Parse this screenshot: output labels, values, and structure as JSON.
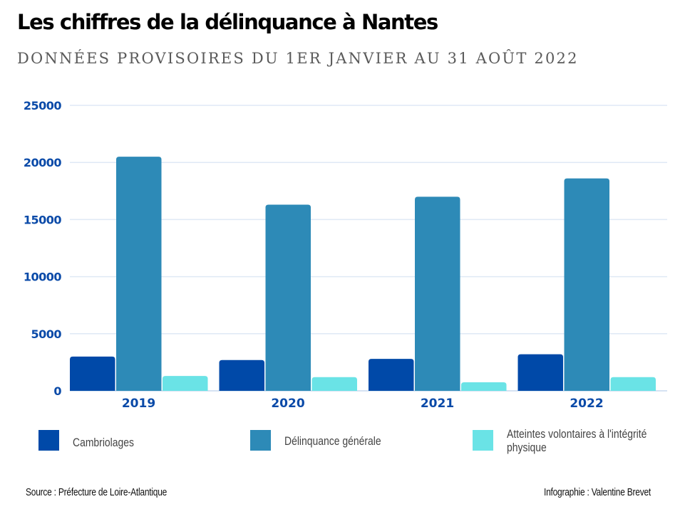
{
  "header": {
    "title": "Les chiffres de la délinquance à Nantes",
    "subtitle": "DONNÉES PROVISOIRES DU 1ER JANVIER AU 31 AOÛT 2022"
  },
  "chart_data": {
    "type": "bar",
    "title": "Les chiffres de la délinquance à Nantes",
    "subtitle": "DONNÉES PROVISOIRES DU 1ER JANVIER AU 31 AOÛT 2022",
    "xlabel": "",
    "ylabel": "",
    "categories": [
      "2019",
      "2020",
      "2021",
      "2022"
    ],
    "series": [
      {
        "name": "Cambriolages",
        "color": "#0049a8",
        "values": [
          3000,
          2700,
          2800,
          3200
        ]
      },
      {
        "name": "Délinquance générale",
        "color": "#2d8ab7",
        "values": [
          20500,
          16300,
          17000,
          18600
        ]
      },
      {
        "name": "Atteintes volontaires à l'intégrité physique",
        "color": "#6ae3e6",
        "values": [
          1300,
          1200,
          750,
          1200
        ]
      }
    ],
    "ylim": [
      0,
      25000
    ],
    "yticks": [
      0,
      5000,
      10000,
      15000,
      20000,
      25000
    ],
    "ytick_labels": [
      "0",
      "5000",
      "10000",
      "15000",
      "20000",
      "25000"
    ],
    "grid": true,
    "legend_position": "bottom",
    "axis_color": "#0a4aa8",
    "grid_color": "#dfe9f5"
  },
  "legend": {
    "items": [
      {
        "label": "Cambriolages",
        "color": "#0049a8"
      },
      {
        "label": "Délinquance générale",
        "color": "#2d8ab7"
      },
      {
        "label": "Atteintes volontaires à l'intégrité physique",
        "color": "#6ae3e6"
      }
    ]
  },
  "footer": {
    "source": "Source : Préfecture de Loire-Atlantique",
    "credit": "Infographie : Valentine Brevet"
  }
}
